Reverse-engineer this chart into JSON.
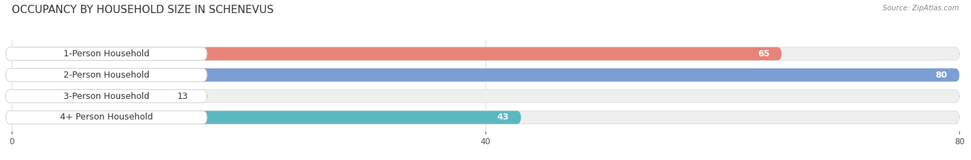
{
  "title": "OCCUPANCY BY HOUSEHOLD SIZE IN SCHENEVUS",
  "source": "Source: ZipAtlas.com",
  "categories": [
    "1-Person Household",
    "2-Person Household",
    "3-Person Household",
    "4+ Person Household"
  ],
  "values": [
    65,
    80,
    13,
    43
  ],
  "bar_colors": [
    "#E8837A",
    "#7B9FD4",
    "#C4A8D0",
    "#5BB8C1"
  ],
  "bar_bg_color": "#EFEFEF",
  "xlim": [
    0,
    80
  ],
  "xticks": [
    0,
    40,
    80
  ],
  "title_fontsize": 11,
  "label_fontsize": 9,
  "value_fontsize": 9,
  "background_color": "#FFFFFF",
  "bar_height": 0.62,
  "figsize": [
    14.06,
    2.33
  ],
  "dpi": 100
}
